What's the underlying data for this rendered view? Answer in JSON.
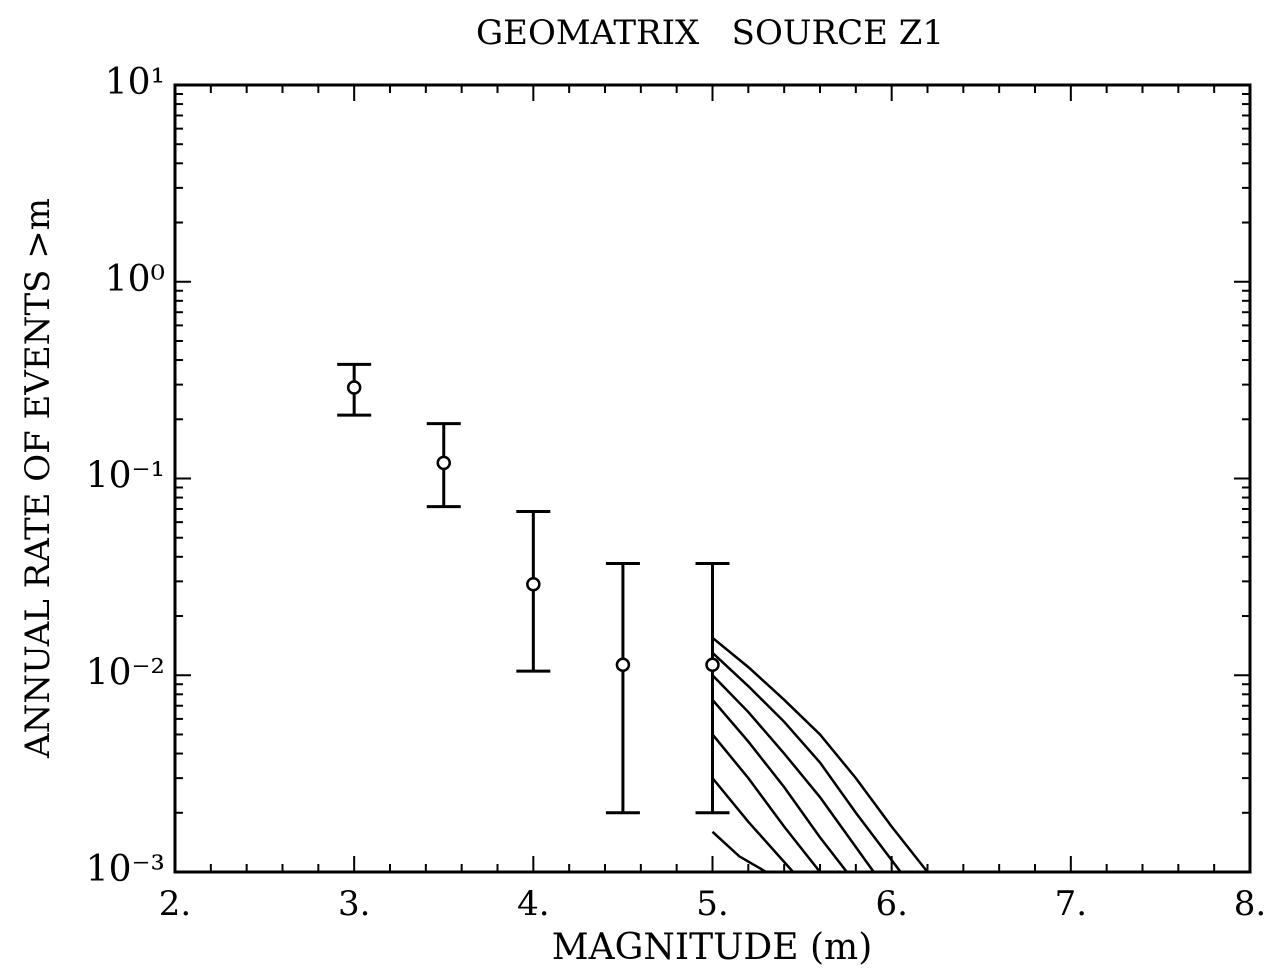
{
  "chart_data": {
    "type": "scatter",
    "title": "GEOMATRIX   SOURCE Z1",
    "x_label": "MAGNITUDE (m)",
    "y_label": "ANNUAL RATE OF EVENTS >m",
    "log_y": true,
    "xlim": [
      2,
      8
    ],
    "ylim": [
      0.001,
      10
    ],
    "xticks": [
      {
        "value": 2,
        "label": "2."
      },
      {
        "value": 3,
        "label": "3."
      },
      {
        "value": 4,
        "label": "4."
      },
      {
        "value": 5,
        "label": "5."
      },
      {
        "value": 6,
        "label": "6."
      },
      {
        "value": 7,
        "label": "7."
      },
      {
        "value": 8,
        "label": "8."
      }
    ],
    "yticks": [
      {
        "value": 0.001,
        "label": "10⁻³"
      },
      {
        "value": 0.01,
        "label": "10⁻²"
      },
      {
        "value": 0.1,
        "label": "10⁻¹"
      },
      {
        "value": 1,
        "label": "10⁰"
      },
      {
        "value": 10,
        "label": "10¹"
      }
    ],
    "color": "#000000",
    "x": [
      3.0,
      3.5,
      4.0,
      4.5,
      5.0
    ],
    "values": [
      0.29,
      0.12,
      0.029,
      0.0113,
      0.0113
    ],
    "lower": [
      0.21,
      0.072,
      0.0105,
      0.002,
      0.002
    ],
    "upper": [
      0.38,
      0.19,
      0.068,
      0.037,
      0.037
    ],
    "curves": [
      {
        "x": [
          5.0,
          5.2,
          5.4,
          5.6,
          5.8,
          6.0,
          6.2
        ],
        "values": [
          0.0155,
          0.011,
          0.0075,
          0.005,
          0.003,
          0.0017,
          0.001
        ]
      },
      {
        "x": [
          5.0,
          5.2,
          5.4,
          5.6,
          5.8,
          6.05
        ],
        "values": [
          0.013,
          0.0088,
          0.0058,
          0.0036,
          0.002,
          0.001
        ]
      },
      {
        "x": [
          5.0,
          5.2,
          5.4,
          5.6,
          5.9
        ],
        "values": [
          0.01,
          0.0065,
          0.004,
          0.0024,
          0.001
        ]
      },
      {
        "x": [
          5.0,
          5.2,
          5.4,
          5.6,
          5.75
        ],
        "values": [
          0.0075,
          0.0046,
          0.0027,
          0.0015,
          0.001
        ]
      },
      {
        "x": [
          5.0,
          5.2,
          5.4,
          5.6
        ],
        "values": [
          0.005,
          0.003,
          0.0017,
          0.001
        ]
      },
      {
        "x": [
          5.0,
          5.2,
          5.45
        ],
        "values": [
          0.003,
          0.0018,
          0.001
        ]
      },
      {
        "x": [
          5.0,
          5.15,
          5.3
        ],
        "values": [
          0.0016,
          0.0012,
          0.001
        ]
      }
    ]
  }
}
